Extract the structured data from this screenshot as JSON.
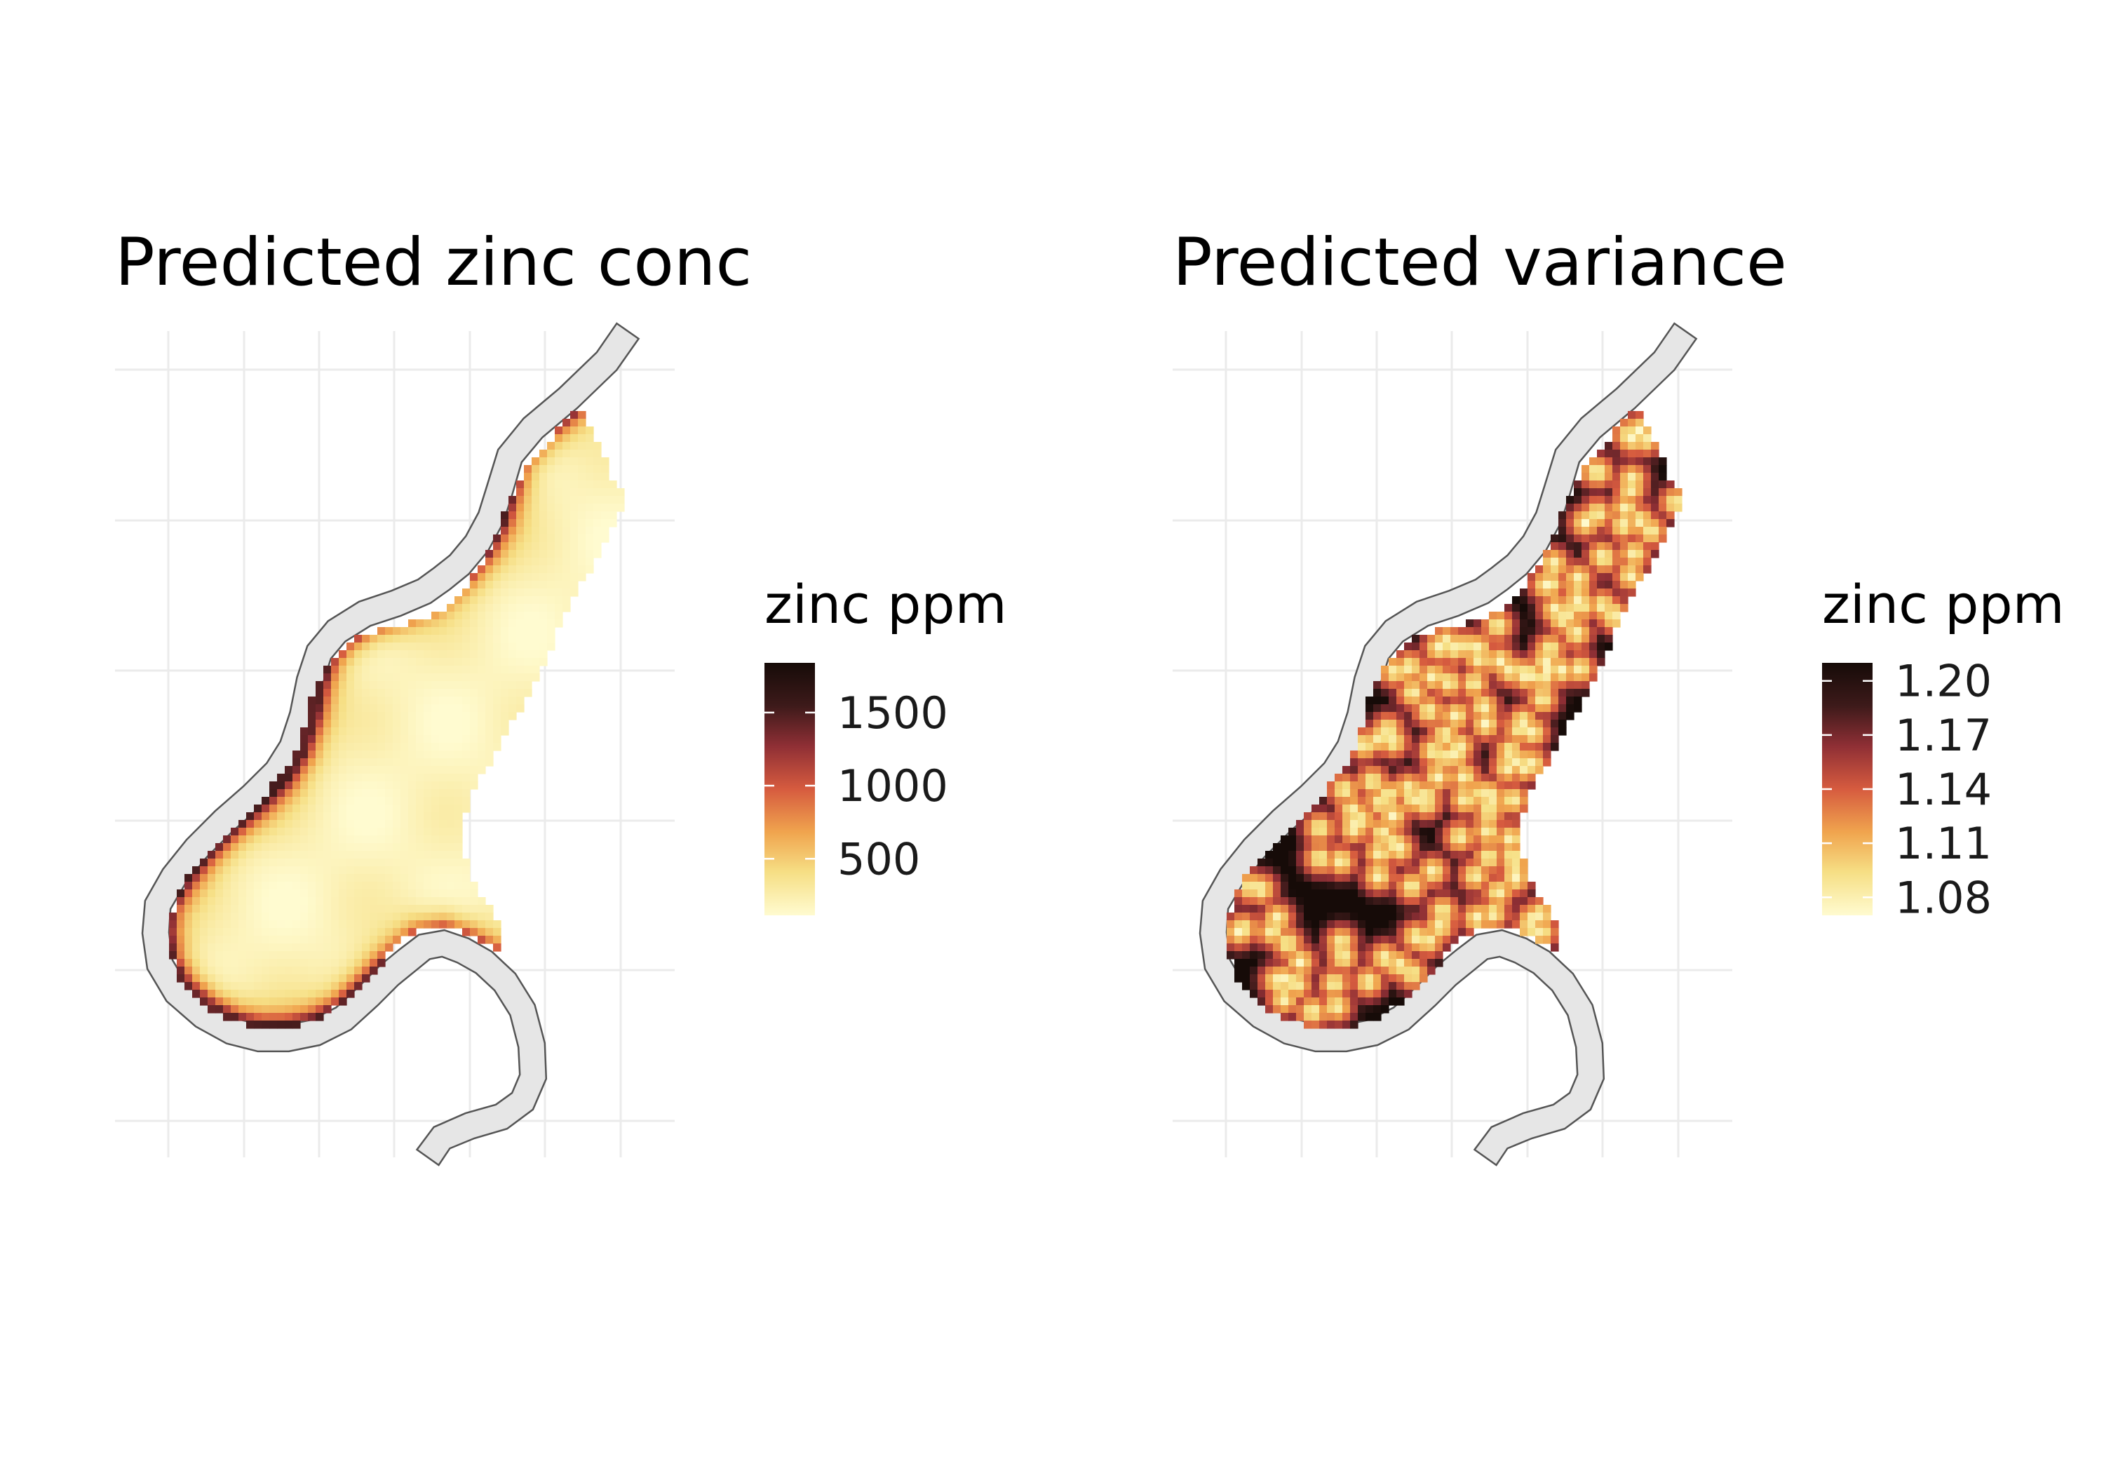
{
  "chart_data": [
    {
      "type": "heatmap",
      "title": "Predicted zinc conc",
      "legend": {
        "title": "zinc ppm",
        "ticks": [
          500,
          1000,
          1500
        ],
        "range": [
          113,
          1840
        ],
        "placement": "right"
      },
      "field": "zinc",
      "colors": [
        "#fffbd0",
        "#f6df85",
        "#f0a44e",
        "#d65b3f",
        "#8f2f35",
        "#3d1a1a",
        "#160b08"
      ],
      "grid": true,
      "map_feature": "river Meuse floodplain"
    },
    {
      "type": "heatmap",
      "title": "Predicted variance",
      "legend": {
        "title": "zinc ppm",
        "ticks": [
          "1.08",
          "1.11",
          "1.14",
          "1.17",
          "1.20"
        ],
        "range": [
          1.07,
          1.21
        ],
        "placement": "right"
      },
      "field": "variance",
      "colors": [
        "#fffbd0",
        "#f6df85",
        "#f0a44e",
        "#d65b3f",
        "#8f2f35",
        "#3d1a1a",
        "#160b08"
      ],
      "grid": true,
      "map_feature": "river Meuse floodplain"
    }
  ]
}
